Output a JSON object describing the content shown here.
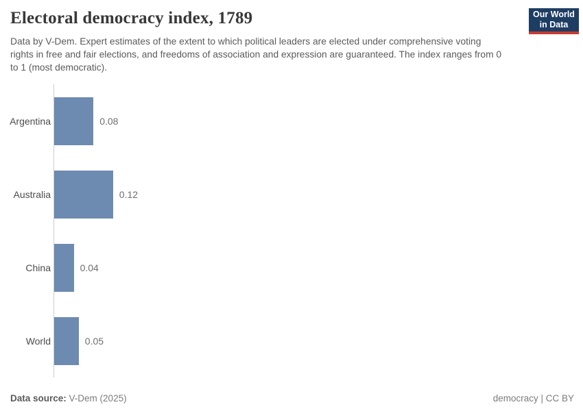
{
  "header": {
    "title": "Electoral democracy index, 1789",
    "subtitle": "Data by V-Dem. Expert estimates of the extent to which political leaders are elected under comprehensive voting rights in free and fair elections, and freedoms of association and expression are guaranteed. The index ranges from 0 to 1 (most democratic).",
    "logo": {
      "line1": "Our World",
      "line2": "in Data"
    }
  },
  "chart_data": {
    "type": "bar",
    "orientation": "horizontal",
    "title": "Electoral democracy index, 1789",
    "categories": [
      "Argentina",
      "Australia",
      "China",
      "World"
    ],
    "values": [
      0.08,
      0.12,
      0.04,
      0.05
    ],
    "value_labels": [
      "0.08",
      "0.12",
      "0.04",
      "0.05"
    ],
    "xlabel": "",
    "ylabel": "",
    "xlim": [
      0,
      1
    ],
    "grid": false,
    "legend": false,
    "x_axis_ticks_visible": false,
    "value_labels_visible": true
  },
  "footer": {
    "source_label": "Data source:",
    "source_value": "V-Dem (2025)",
    "slug": "democracy",
    "separator": " | ",
    "license": "CC BY"
  },
  "colors": {
    "bar": "#6d8ab0",
    "axis": "#cccccc",
    "logo_bg": "#1d3d63",
    "logo_red": "#c53d33",
    "title_text": "#383838",
    "subtitle_text": "#5a5a5a",
    "category_text": "#4c4c4c",
    "value_text": "#6e6e6e"
  }
}
